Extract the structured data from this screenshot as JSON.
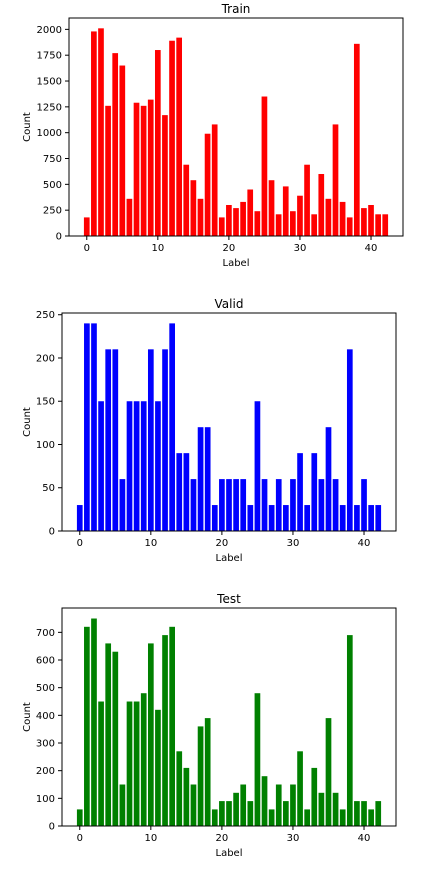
{
  "chart_data": [
    {
      "type": "bar",
      "title": "Train",
      "xlabel": "Label",
      "ylabel": "Count",
      "color": "#ff0000",
      "x": [
        0,
        1,
        2,
        3,
        4,
        5,
        6,
        7,
        8,
        9,
        10,
        11,
        12,
        13,
        14,
        15,
        16,
        17,
        18,
        19,
        20,
        21,
        22,
        23,
        24,
        25,
        26,
        27,
        28,
        29,
        30,
        31,
        32,
        33,
        34,
        35,
        36,
        37,
        38,
        39,
        40,
        41,
        42
      ],
      "values": [
        180,
        1980,
        2010,
        1260,
        1770,
        1650,
        360,
        1290,
        1260,
        1320,
        1800,
        1170,
        1890,
        1920,
        690,
        540,
        360,
        990,
        1080,
        180,
        300,
        270,
        330,
        450,
        240,
        1350,
        540,
        210,
        480,
        240,
        390,
        690,
        210,
        600,
        360,
        1080,
        330,
        180,
        1860,
        270,
        300,
        210,
        210
      ],
      "xlim": [
        -2.5,
        44.5
      ],
      "ylim": [
        0,
        2110
      ],
      "xticks": [
        "0",
        "10",
        "20",
        "30",
        "40"
      ],
      "yticks": [
        "0",
        "250",
        "500",
        "750",
        "1000",
        "1250",
        "1500",
        "1750",
        "2000"
      ]
    },
    {
      "type": "bar",
      "title": "Valid",
      "xlabel": "Label",
      "ylabel": "Count",
      "color": "#0000ff",
      "x": [
        0,
        1,
        2,
        3,
        4,
        5,
        6,
        7,
        8,
        9,
        10,
        11,
        12,
        13,
        14,
        15,
        16,
        17,
        18,
        19,
        20,
        21,
        22,
        23,
        24,
        25,
        26,
        27,
        28,
        29,
        30,
        31,
        32,
        33,
        34,
        35,
        36,
        37,
        38,
        39,
        40,
        41,
        42
      ],
      "values": [
        30,
        240,
        240,
        150,
        210,
        210,
        60,
        150,
        150,
        150,
        210,
        150,
        210,
        240,
        90,
        90,
        60,
        120,
        120,
        30,
        60,
        60,
        60,
        60,
        30,
        150,
        60,
        30,
        60,
        30,
        60,
        90,
        30,
        90,
        60,
        120,
        60,
        30,
        210,
        30,
        60,
        30,
        30
      ],
      "xlim": [
        -2.5,
        44.5
      ],
      "ylim": [
        0,
        252
      ],
      "xticks": [
        "0",
        "10",
        "20",
        "30",
        "40"
      ],
      "yticks": [
        "0",
        "50",
        "100",
        "150",
        "200",
        "250"
      ]
    },
    {
      "type": "bar",
      "title": "Test",
      "xlabel": "Label",
      "ylabel": "Count",
      "color": "#008000",
      "x": [
        0,
        1,
        2,
        3,
        4,
        5,
        6,
        7,
        8,
        9,
        10,
        11,
        12,
        13,
        14,
        15,
        16,
        17,
        18,
        19,
        20,
        21,
        22,
        23,
        24,
        25,
        26,
        27,
        28,
        29,
        30,
        31,
        32,
        33,
        34,
        35,
        36,
        37,
        38,
        39,
        40,
        41,
        42
      ],
      "values": [
        60,
        720,
        750,
        450,
        660,
        630,
        150,
        450,
        450,
        480,
        660,
        420,
        690,
        720,
        270,
        210,
        150,
        360,
        390,
        60,
        90,
        90,
        120,
        150,
        90,
        480,
        180,
        60,
        150,
        90,
        150,
        270,
        60,
        210,
        120,
        390,
        120,
        60,
        690,
        90,
        90,
        60,
        90
      ],
      "xlim": [
        -2.5,
        44.5
      ],
      "ylim": [
        0,
        788
      ],
      "xticks": [
        "0",
        "10",
        "20",
        "30",
        "40"
      ],
      "yticks": [
        "0",
        "100",
        "200",
        "300",
        "400",
        "500",
        "600",
        "700"
      ]
    }
  ]
}
